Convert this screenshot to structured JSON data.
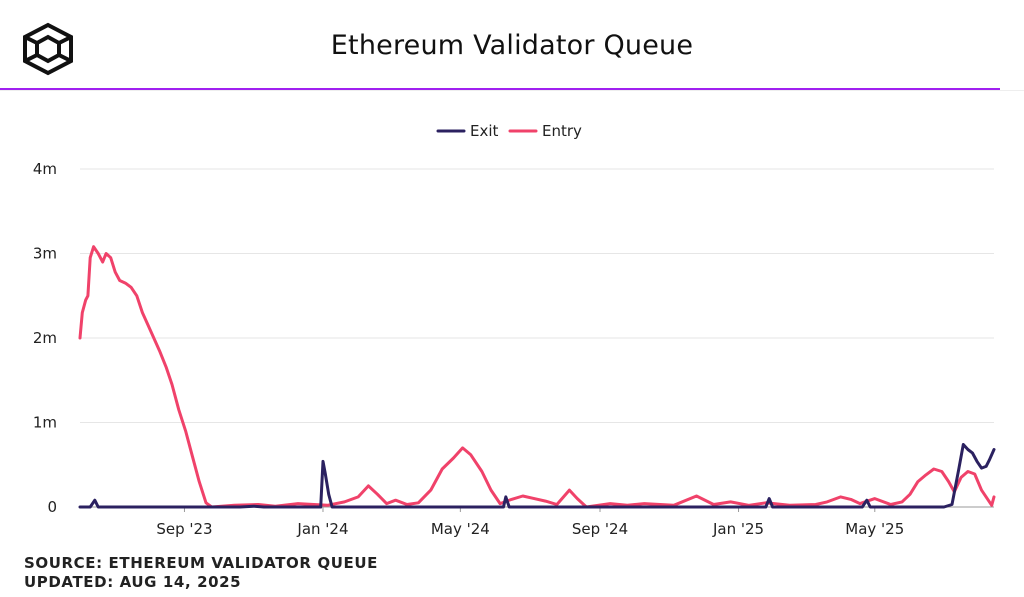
{
  "header": {
    "title": "Ethereum Validator Queue",
    "logo_icon": "cube-icon"
  },
  "footer": {
    "source": "SOURCE: ETHEREUM VALIDATOR QUEUE",
    "updated": "UPDATED: AUG 14, 2025"
  },
  "colors": {
    "exit": "#2b2160",
    "entry": "#f0426a",
    "accent": "#a020f0",
    "grid": "#e6e6e6"
  },
  "chart_data": {
    "type": "line",
    "title": "Ethereum Validator Queue",
    "xlabel": "",
    "ylabel": "",
    "legend_position": "top-center",
    "grid": true,
    "xlim": [
      "2023-06-01",
      "2025-08-14"
    ],
    "ylim": [
      0,
      4000000
    ],
    "y_ticks": [
      {
        "value": 0,
        "label": "0"
      },
      {
        "value": 1000000,
        "label": "1m"
      },
      {
        "value": 2000000,
        "label": "2m"
      },
      {
        "value": 3000000,
        "label": "3m"
      },
      {
        "value": 4000000,
        "label": "4m"
      }
    ],
    "x_ticks": [
      {
        "date": "2023-09-01",
        "label": "Sep '23"
      },
      {
        "date": "2024-01-01",
        "label": "Jan '24"
      },
      {
        "date": "2024-05-01",
        "label": "May '24"
      },
      {
        "date": "2024-09-01",
        "label": "Sep '24"
      },
      {
        "date": "2025-01-01",
        "label": "Jan '25"
      },
      {
        "date": "2025-05-01",
        "label": "May '25"
      }
    ],
    "series": [
      {
        "name": "Exit",
        "color": "#2b2160",
        "points": [
          [
            "2023-06-01",
            0
          ],
          [
            "2023-06-10",
            0
          ],
          [
            "2023-06-14",
            80000
          ],
          [
            "2023-06-17",
            0
          ],
          [
            "2023-10-20",
            0
          ],
          [
            "2023-11-01",
            10000
          ],
          [
            "2023-11-10",
            0
          ],
          [
            "2023-12-30",
            0
          ],
          [
            "2024-01-01",
            540000
          ],
          [
            "2024-01-03",
            400000
          ],
          [
            "2024-01-06",
            150000
          ],
          [
            "2024-01-09",
            0
          ],
          [
            "2024-06-08",
            0
          ],
          [
            "2024-06-10",
            120000
          ],
          [
            "2024-06-13",
            0
          ],
          [
            "2025-01-25",
            0
          ],
          [
            "2025-01-28",
            100000
          ],
          [
            "2025-01-31",
            0
          ],
          [
            "2025-04-20",
            0
          ],
          [
            "2025-04-24",
            80000
          ],
          [
            "2025-04-27",
            0
          ],
          [
            "2025-07-01",
            0
          ],
          [
            "2025-07-08",
            30000
          ],
          [
            "2025-07-14",
            450000
          ],
          [
            "2025-07-18",
            740000
          ],
          [
            "2025-07-22",
            680000
          ],
          [
            "2025-07-26",
            640000
          ],
          [
            "2025-07-30",
            540000
          ],
          [
            "2025-08-03",
            460000
          ],
          [
            "2025-08-07",
            480000
          ],
          [
            "2025-08-10",
            560000
          ],
          [
            "2025-08-14",
            680000
          ]
        ]
      },
      {
        "name": "Entry",
        "color": "#f0426a",
        "points": [
          [
            "2023-06-01",
            2000000
          ],
          [
            "2023-06-03",
            2300000
          ],
          [
            "2023-06-06",
            2450000
          ],
          [
            "2023-06-08",
            2500000
          ],
          [
            "2023-06-10",
            2950000
          ],
          [
            "2023-06-13",
            3080000
          ],
          [
            "2023-06-17",
            3000000
          ],
          [
            "2023-06-21",
            2900000
          ],
          [
            "2023-06-24",
            3000000
          ],
          [
            "2023-06-28",
            2950000
          ],
          [
            "2023-07-02",
            2780000
          ],
          [
            "2023-07-06",
            2680000
          ],
          [
            "2023-07-11",
            2650000
          ],
          [
            "2023-07-16",
            2600000
          ],
          [
            "2023-07-21",
            2500000
          ],
          [
            "2023-07-26",
            2300000
          ],
          [
            "2023-07-31",
            2150000
          ],
          [
            "2023-08-05",
            2000000
          ],
          [
            "2023-08-10",
            1850000
          ],
          [
            "2023-08-16",
            1650000
          ],
          [
            "2023-08-21",
            1450000
          ],
          [
            "2023-08-27",
            1150000
          ],
          [
            "2023-09-02",
            900000
          ],
          [
            "2023-09-08",
            600000
          ],
          [
            "2023-09-14",
            300000
          ],
          [
            "2023-09-20",
            50000
          ],
          [
            "2023-09-25",
            0
          ],
          [
            "2023-10-15",
            20000
          ],
          [
            "2023-11-05",
            30000
          ],
          [
            "2023-11-20",
            10000
          ],
          [
            "2023-12-10",
            40000
          ],
          [
            "2024-01-05",
            20000
          ],
          [
            "2024-01-20",
            60000
          ],
          [
            "2024-02-01",
            120000
          ],
          [
            "2024-02-10",
            250000
          ],
          [
            "2024-02-18",
            150000
          ],
          [
            "2024-02-26",
            40000
          ],
          [
            "2024-03-05",
            80000
          ],
          [
            "2024-03-15",
            30000
          ],
          [
            "2024-03-25",
            50000
          ],
          [
            "2024-04-05",
            200000
          ],
          [
            "2024-04-15",
            450000
          ],
          [
            "2024-04-25",
            580000
          ],
          [
            "2024-05-03",
            700000
          ],
          [
            "2024-05-10",
            620000
          ],
          [
            "2024-05-20",
            420000
          ],
          [
            "2024-05-28",
            200000
          ],
          [
            "2024-06-05",
            40000
          ],
          [
            "2024-06-15",
            90000
          ],
          [
            "2024-06-25",
            130000
          ],
          [
            "2024-07-05",
            100000
          ],
          [
            "2024-07-15",
            70000
          ],
          [
            "2024-07-25",
            30000
          ],
          [
            "2024-08-05",
            200000
          ],
          [
            "2024-08-12",
            100000
          ],
          [
            "2024-08-20",
            0
          ],
          [
            "2024-09-10",
            40000
          ],
          [
            "2024-09-25",
            20000
          ],
          [
            "2024-10-10",
            40000
          ],
          [
            "2024-11-05",
            20000
          ],
          [
            "2024-11-25",
            130000
          ],
          [
            "2024-12-10",
            30000
          ],
          [
            "2024-12-25",
            60000
          ],
          [
            "2025-01-10",
            20000
          ],
          [
            "2025-01-25",
            50000
          ],
          [
            "2025-02-15",
            20000
          ],
          [
            "2025-03-10",
            30000
          ],
          [
            "2025-03-20",
            60000
          ],
          [
            "2025-04-01",
            120000
          ],
          [
            "2025-04-10",
            90000
          ],
          [
            "2025-04-18",
            40000
          ],
          [
            "2025-05-01",
            100000
          ],
          [
            "2025-05-15",
            30000
          ],
          [
            "2025-05-25",
            60000
          ],
          [
            "2025-06-01",
            150000
          ],
          [
            "2025-06-08",
            300000
          ],
          [
            "2025-06-15",
            380000
          ],
          [
            "2025-06-22",
            450000
          ],
          [
            "2025-06-29",
            420000
          ],
          [
            "2025-07-05",
            300000
          ],
          [
            "2025-07-10",
            180000
          ],
          [
            "2025-07-16",
            350000
          ],
          [
            "2025-07-22",
            420000
          ],
          [
            "2025-07-28",
            390000
          ],
          [
            "2025-08-03",
            200000
          ],
          [
            "2025-08-08",
            100000
          ],
          [
            "2025-08-12",
            20000
          ],
          [
            "2025-08-14",
            120000
          ]
        ]
      }
    ]
  }
}
